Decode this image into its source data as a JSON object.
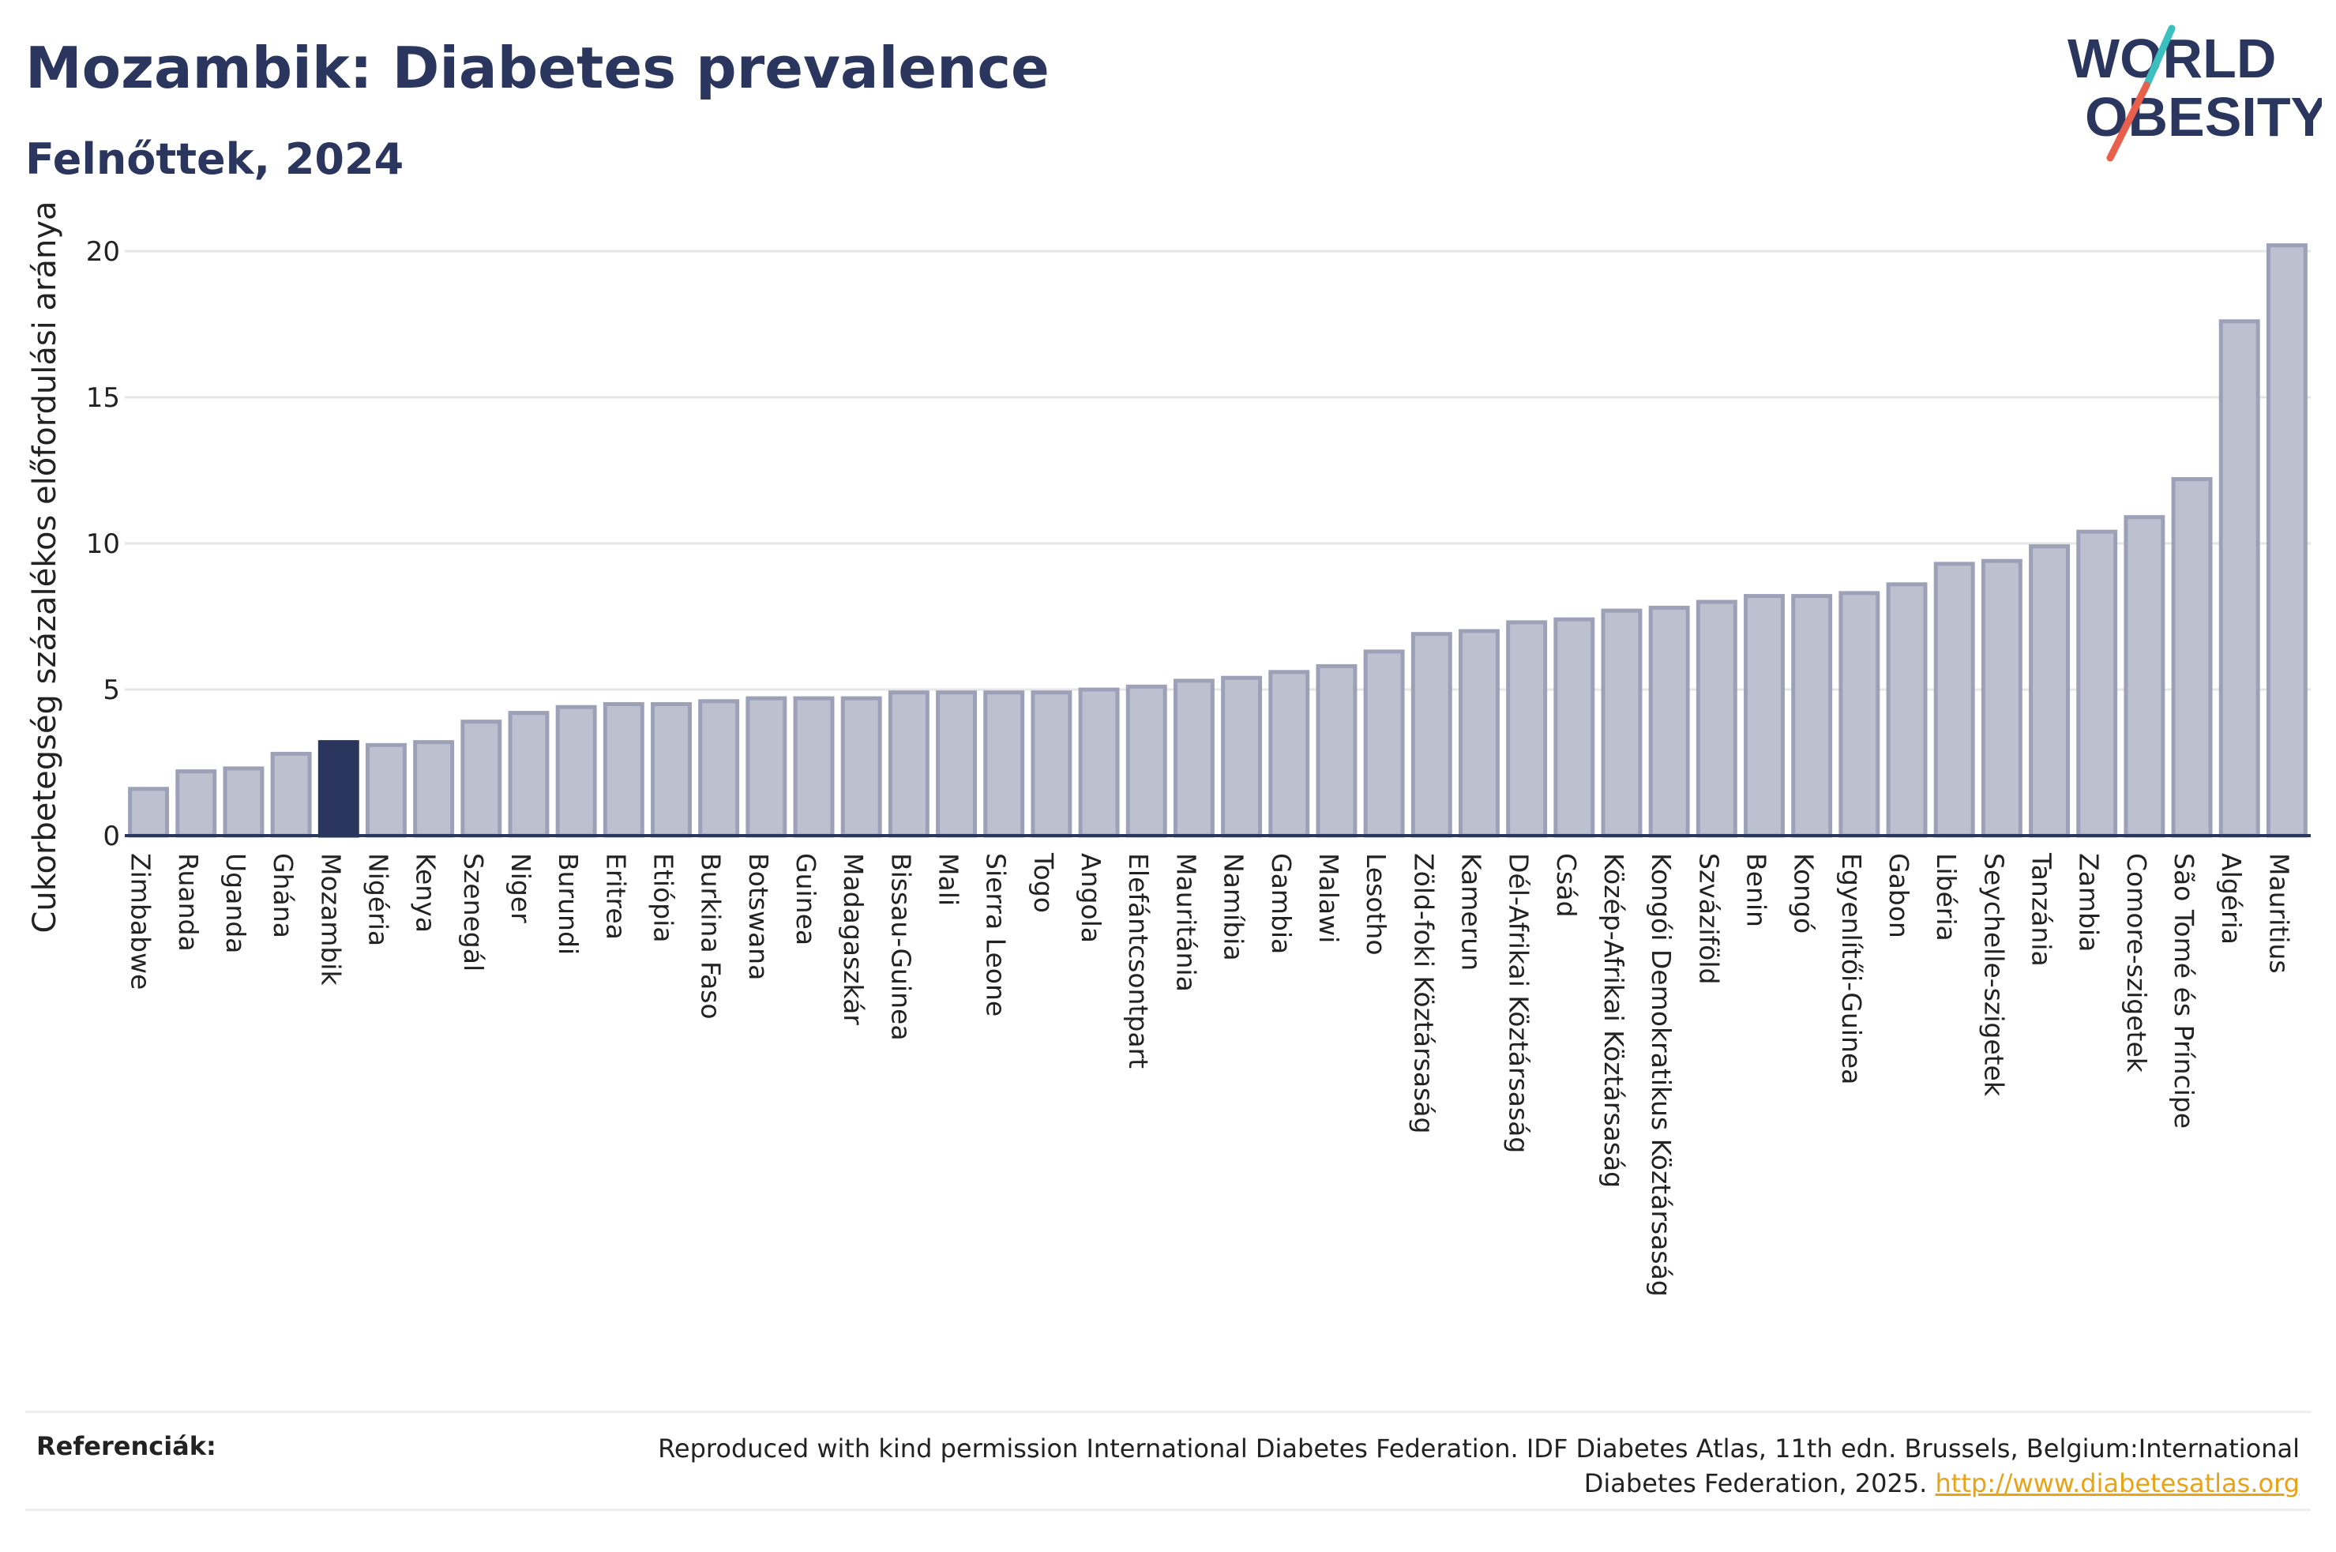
{
  "header": {
    "title": "Mozambik: Diabetes prevalence",
    "subtitle": "Felnőttek, 2024",
    "logo_line1": "WORLD",
    "logo_line2": "OBESITY"
  },
  "footer": {
    "label": "Referenciák:",
    "text": "Reproduced with kind permission International Diabetes Federation. IDF Diabetes Atlas, 11th edn. Brussels, Belgium:International Diabetes Federation, 2025.",
    "link": "http://www.diabetesatlas.org"
  },
  "colors": {
    "title": "#2b365f",
    "bar": "#bcc0cf",
    "bar_stroke": "#9ca1b8",
    "highlight": "#2b365f",
    "link": "#e8a317",
    "logo_teal": "#3bbfbf",
    "logo_red": "#e8604c"
  },
  "chart_data": {
    "type": "bar",
    "ylabel": "Cukorbetegség százalékos előfordulási aránya",
    "ylim": [
      0,
      21
    ],
    "yticks": [
      0,
      5,
      10,
      15,
      20
    ],
    "grid": true,
    "highlight": "Mozambik",
    "categories": [
      "Zimbabwe",
      "Ruanda",
      "Uganda",
      "Ghána",
      "Mozambik",
      "Nigéria",
      "Kenya",
      "Szenegál",
      "Niger",
      "Burundi",
      "Eritrea",
      "Etiópia",
      "Burkina Faso",
      "Botswana",
      "Guinea",
      "Madagaszkár",
      "Bissau-Guinea",
      "Mali",
      "Sierra Leone",
      "Togo",
      "Angola",
      "Elefántcsontpart",
      "Mauritánia",
      "Namíbia",
      "Gambia",
      "Malawi",
      "Lesotho",
      "Zöld-foki Köztársaság",
      "Kamerun",
      "Dél-Afrikai Köztársaság",
      "Csád",
      "Közép-Afrikai Köztársaság",
      "Kongói Demokratikus Köztársaság",
      "Szváziföld",
      "Benin",
      "Kongó",
      "Egyenlítői-Guinea",
      "Gabon",
      "Libéria",
      "Seychelle-szigetek",
      "Tanzánia",
      "Zambia",
      "Comore-szigetek",
      "São Tomé és Príncipe",
      "Algéria",
      "Mauritius"
    ],
    "values": [
      1.6,
      2.2,
      2.3,
      2.8,
      3.2,
      3.1,
      3.2,
      3.9,
      4.2,
      4.4,
      4.5,
      4.5,
      4.6,
      4.7,
      4.7,
      4.7,
      4.9,
      4.9,
      4.9,
      4.9,
      5.0,
      5.1,
      5.3,
      5.4,
      5.6,
      5.8,
      6.3,
      6.9,
      7.0,
      7.3,
      7.4,
      7.7,
      7.8,
      8.0,
      8.2,
      8.2,
      8.3,
      8.6,
      9.3,
      9.4,
      9.9,
      10.4,
      10.9,
      12.2,
      17.6,
      20.2
    ]
  }
}
